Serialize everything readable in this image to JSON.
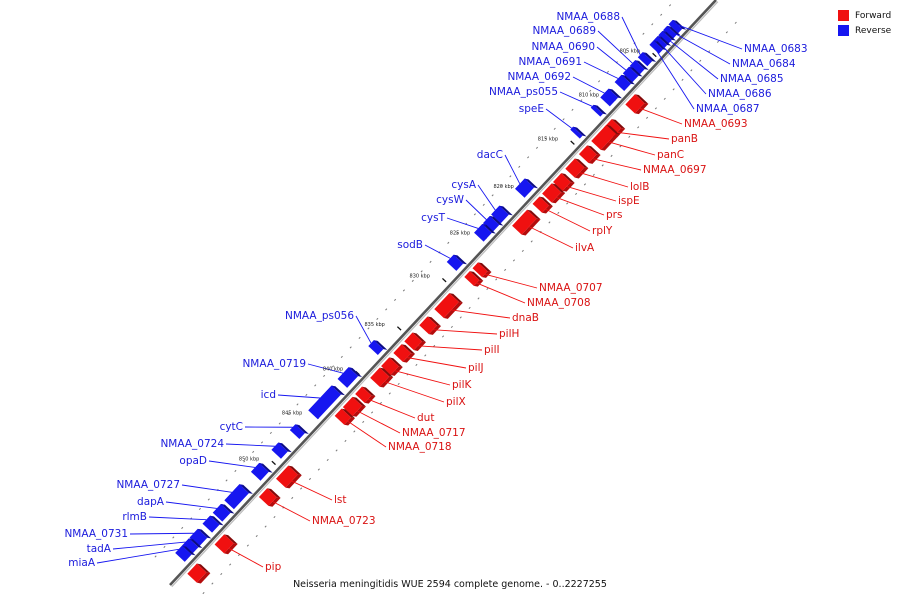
{
  "colors": {
    "forward": "#f01010",
    "reverse": "#1616f0",
    "backbone": "#555555"
  },
  "legend": [
    {
      "label": "Forward",
      "color": "#f01010"
    },
    {
      "label": "Reverse",
      "color": "#1616f0"
    }
  ],
  "caption": "Neisseria meningitidis WUE 2594 complete genome. - 0..2227255",
  "kbp_labels": [
    "805 kbp",
    "810 kbp",
    "815 kbp",
    "820 kbp",
    "825 kbp",
    "830 kbp",
    "835 kbp",
    "840 kbp",
    "845 kbp",
    "850 kbp"
  ],
  "reverse_genes": [
    "NMAA_0688",
    "NMAA_0689",
    "NMAA_0690",
    "NMAA_0691",
    "NMAA_0692",
    "NMAA_ps055",
    "speE",
    "dacC",
    "cysA",
    "cysW",
    "cysT",
    "sodB",
    "NMAA_ps056",
    "NMAA_0719",
    "icd",
    "cytC",
    "NMAA_0724",
    "opaD",
    "NMAA_0727",
    "dapA",
    "rlmB",
    "NMAA_0731",
    "tadA",
    "miaA",
    "NMAA_0683",
    "NMAA_0684",
    "NMAA_0685",
    "NMAA_0686",
    "NMAA_0687"
  ],
  "forward_genes": [
    "NMAA_0693",
    "panB",
    "panC",
    "NMAA_0697",
    "lolB",
    "ispE",
    "prs",
    "rplY",
    "ilvA",
    "NMAA_0707",
    "NMAA_0708",
    "dnaB",
    "pilH",
    "pilI",
    "pilJ",
    "pilK",
    "pilX",
    "dut",
    "NMAA_0717",
    "NMAA_0718",
    "lst",
    "NMAA_0723",
    "pip"
  ]
}
